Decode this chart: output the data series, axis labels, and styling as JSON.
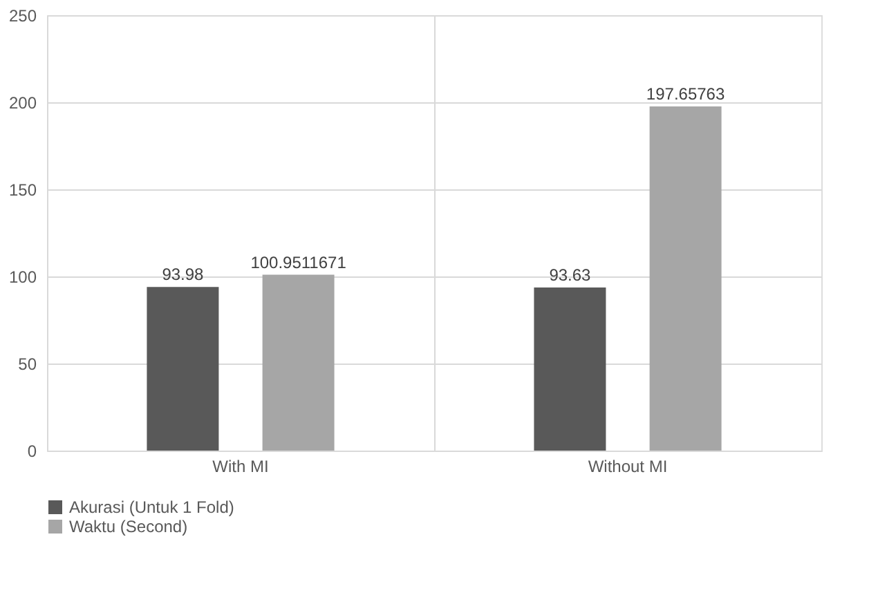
{
  "chart_data": {
    "type": "bar",
    "categories": [
      "With MI",
      "Without MI"
    ],
    "series": [
      {
        "name": "Akurasi (Untuk 1 Fold)",
        "color": "#595959",
        "values": [
          93.98,
          93.63
        ]
      },
      {
        "name": "Waktu (Second)",
        "color": "#a6a6a6",
        "values": [
          100.9511671,
          197.65763
        ]
      }
    ],
    "ylim": [
      0,
      250
    ],
    "yticks": [
      0,
      50,
      100,
      150,
      200,
      250
    ],
    "grid": true,
    "legend": "bottom",
    "data_labels": true
  }
}
